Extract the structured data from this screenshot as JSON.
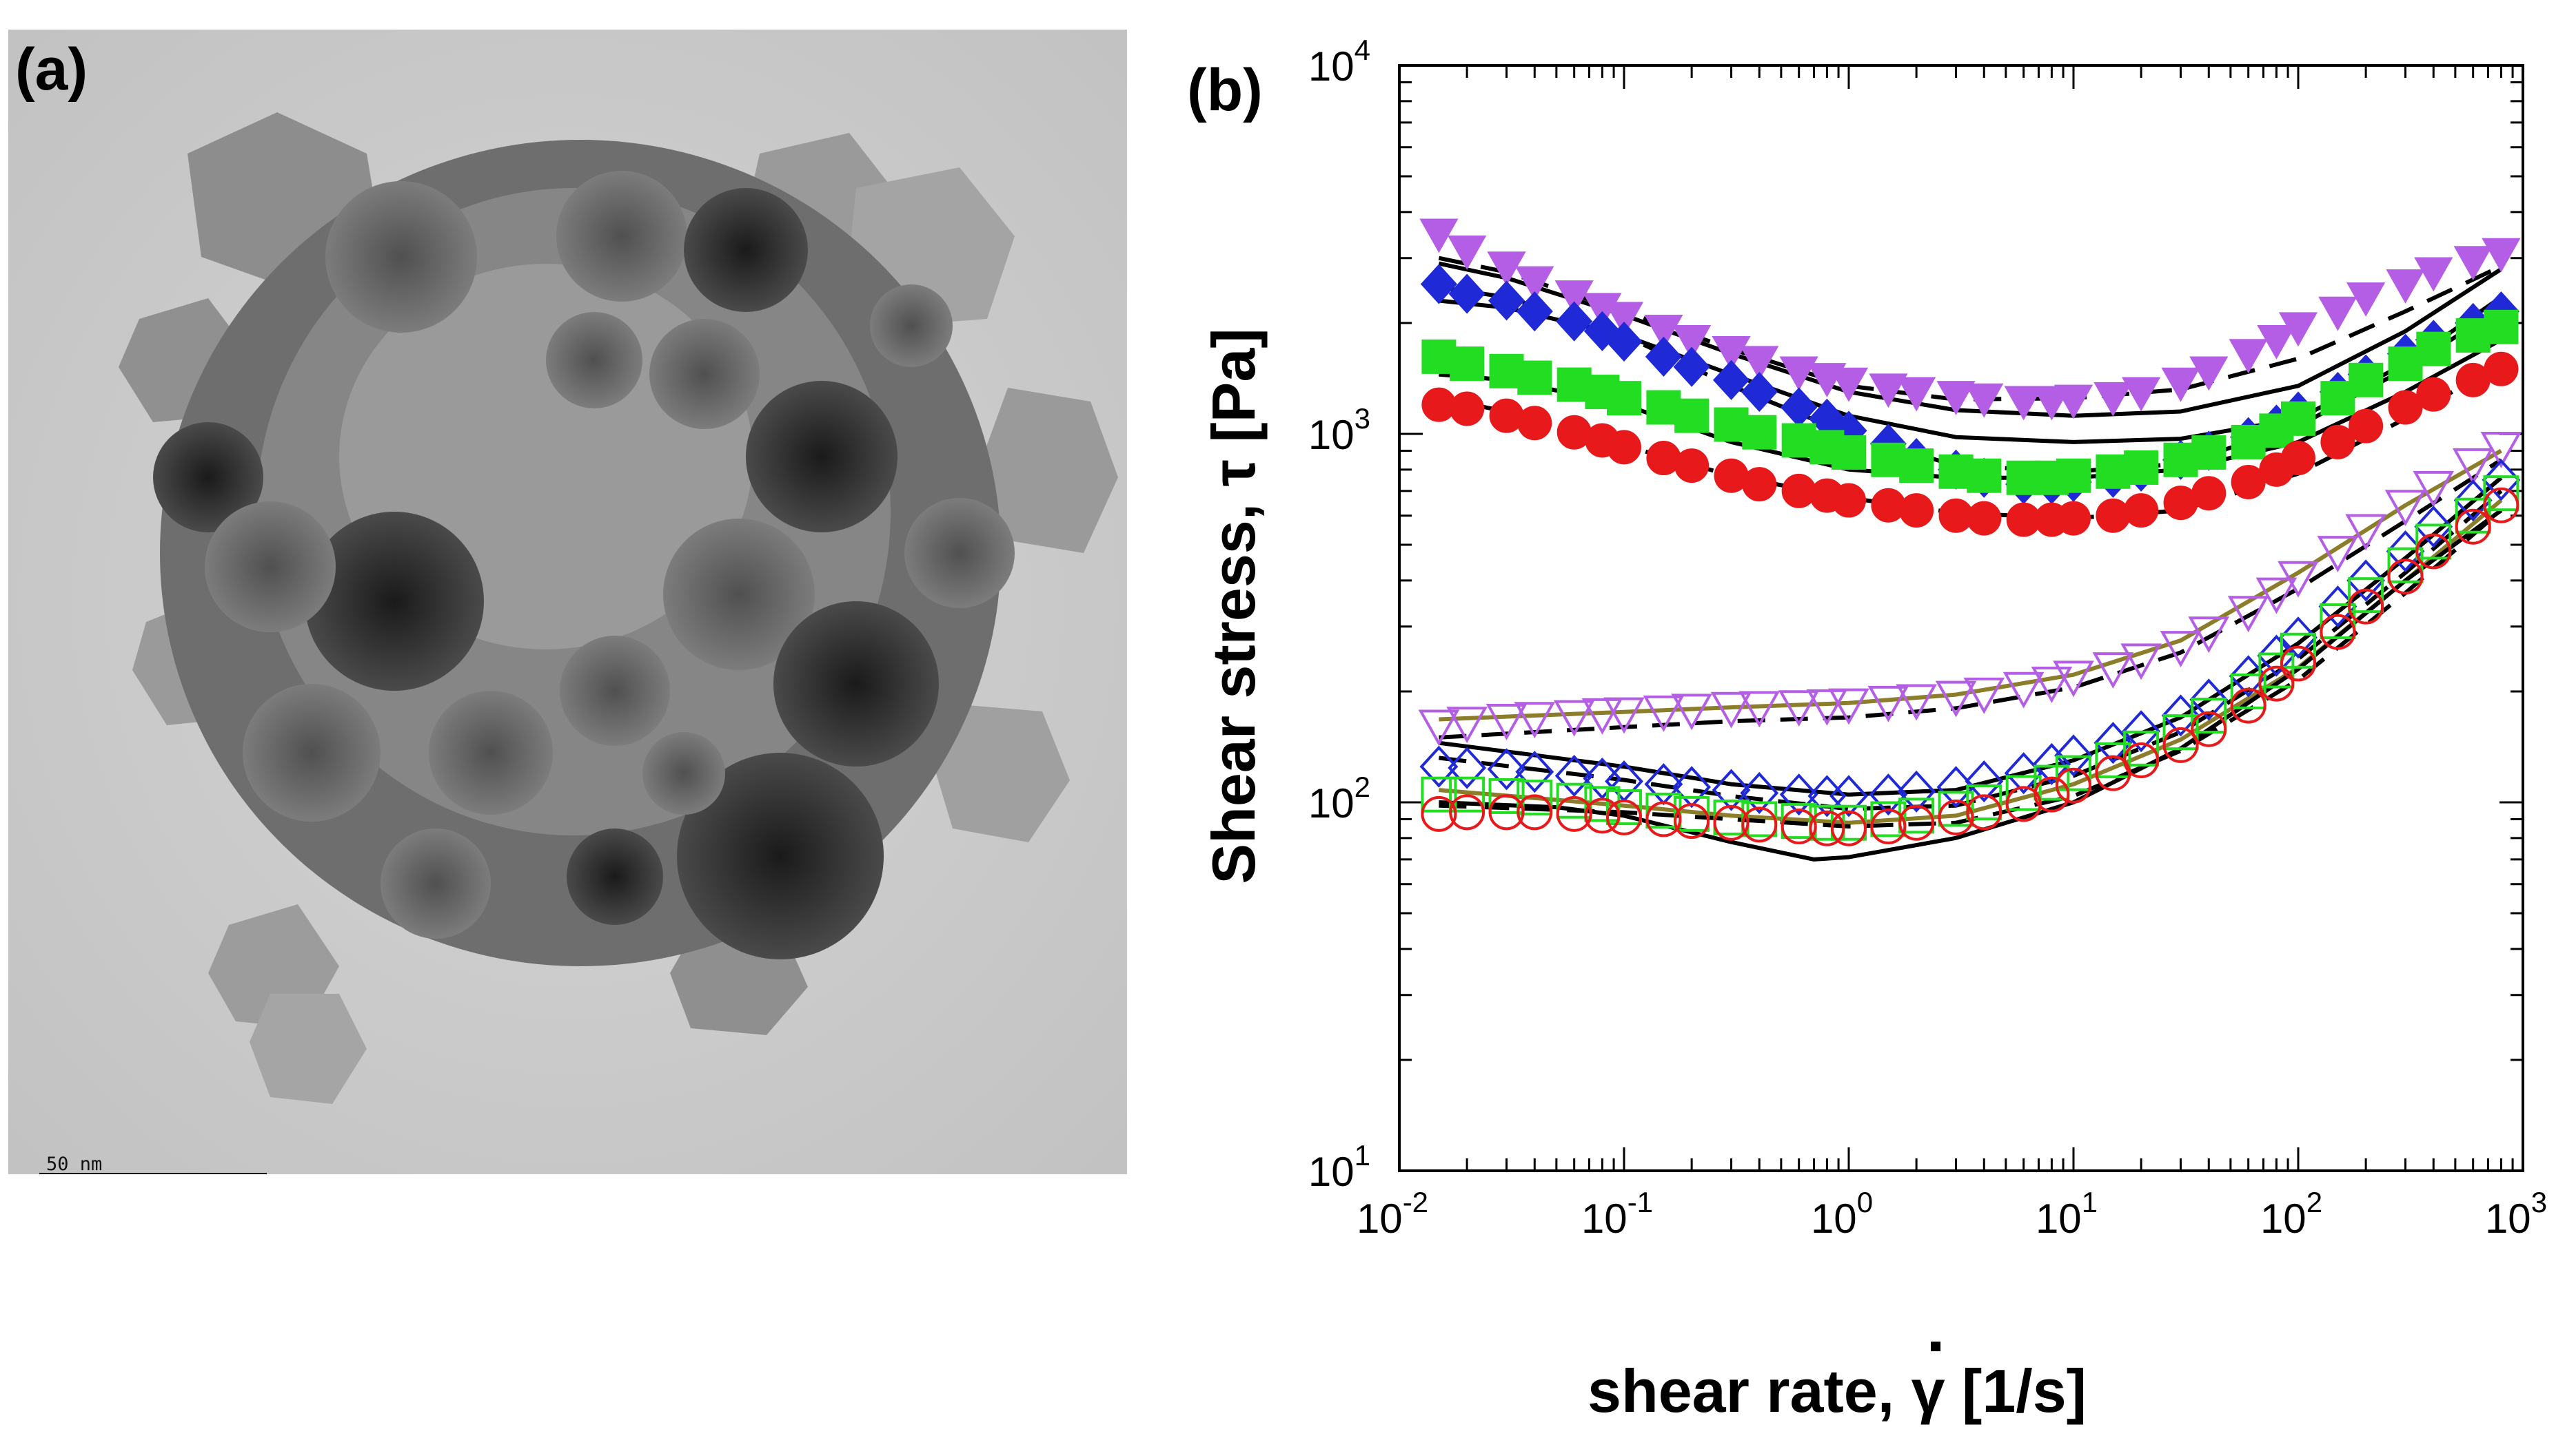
{
  "panel_a": {
    "label": "(a)",
    "scale_bar_text": "50 nm",
    "image_description": "TEM micrograph of a nanoparticle agglomerate"
  },
  "panel_b": {
    "label": "(b)"
  },
  "chart_data": {
    "type": "scatter",
    "xscale": "log",
    "yscale": "log",
    "xlim": [
      0.01,
      1000
    ],
    "ylim": [
      10,
      10000
    ],
    "xlabel": "shear rate, γ̇ [1/s]",
    "xlabel_text": "shear rate, ",
    "xlabel_symbol": "γ",
    "xlabel_unit": " [1/s]",
    "ylabel": "Shear stress, τ [Pa]",
    "xticks": [
      {
        "base": "10",
        "exp": "-2"
      },
      {
        "base": "10",
        "exp": "-1"
      },
      {
        "base": "10",
        "exp": "0"
      },
      {
        "base": "10",
        "exp": "1"
      },
      {
        "base": "10",
        "exp": "2"
      },
      {
        "base": "10",
        "exp": "3"
      }
    ],
    "yticks": [
      {
        "base": "10",
        "exp": "1"
      },
      {
        "base": "10",
        "exp": "2"
      },
      {
        "base": "10",
        "exp": "3"
      },
      {
        "base": "10",
        "exp": "4"
      }
    ],
    "series": [
      {
        "name": "filled-triangle-violet",
        "marker": "triangle-down",
        "filled": true,
        "color": "#b45ee6",
        "x": [
          0.015,
          0.02,
          0.03,
          0.04,
          0.06,
          0.08,
          0.1,
          0.15,
          0.2,
          0.3,
          0.4,
          0.6,
          0.8,
          1,
          1.5,
          2,
          3,
          4,
          6,
          8,
          10,
          15,
          20,
          30,
          40,
          60,
          80,
          100,
          150,
          200,
          300,
          400,
          600,
          800
        ],
        "y": [
          3500,
          3150,
          2850,
          2600,
          2380,
          2200,
          2080,
          1920,
          1800,
          1680,
          1580,
          1480,
          1420,
          1380,
          1330,
          1300,
          1270,
          1250,
          1230,
          1230,
          1240,
          1260,
          1300,
          1380,
          1480,
          1650,
          1800,
          1950,
          2150,
          2350,
          2550,
          2750,
          2950,
          3100
        ]
      },
      {
        "name": "filled-diamond-blue",
        "marker": "diamond",
        "filled": true,
        "color": "#1f2ad6",
        "x": [
          0.015,
          0.02,
          0.03,
          0.04,
          0.06,
          0.08,
          0.1,
          0.15,
          0.2,
          0.3,
          0.4,
          0.6,
          0.8,
          1,
          1.5,
          2,
          3,
          4,
          6,
          8,
          10,
          15,
          20,
          30,
          40,
          60,
          80,
          100,
          150,
          200,
          300,
          400,
          600,
          800
        ],
        "y": [
          2550,
          2400,
          2300,
          2150,
          2020,
          1900,
          1780,
          1620,
          1520,
          1400,
          1300,
          1180,
          1100,
          1020,
          940,
          860,
          800,
          760,
          730,
          730,
          740,
          760,
          790,
          850,
          900,
          980,
          1060,
          1150,
          1300,
          1450,
          1650,
          1800,
          2000,
          2150
        ]
      },
      {
        "name": "filled-square-green",
        "marker": "square",
        "filled": true,
        "color": "#22dd22",
        "x": [
          0.015,
          0.02,
          0.03,
          0.04,
          0.06,
          0.08,
          0.1,
          0.15,
          0.2,
          0.3,
          0.4,
          0.6,
          0.8,
          1,
          1.5,
          2,
          3,
          4,
          6,
          8,
          10,
          15,
          20,
          30,
          40,
          60,
          80,
          100,
          150,
          200,
          300,
          400,
          600,
          800
        ],
        "y": [
          1620,
          1550,
          1480,
          1420,
          1360,
          1300,
          1250,
          1180,
          1120,
          1060,
          1010,
          960,
          920,
          890,
          850,
          820,
          790,
          770,
          760,
          760,
          770,
          790,
          810,
          850,
          890,
          950,
          1020,
          1100,
          1250,
          1400,
          1550,
          1700,
          1850,
          1950
        ]
      },
      {
        "name": "filled-circle-red",
        "marker": "circle",
        "filled": true,
        "color": "#e8191b",
        "x": [
          0.015,
          0.02,
          0.03,
          0.04,
          0.06,
          0.08,
          0.1,
          0.15,
          0.2,
          0.3,
          0.4,
          0.6,
          0.8,
          1,
          1.5,
          2,
          3,
          4,
          6,
          8,
          10,
          15,
          20,
          30,
          40,
          60,
          80,
          100,
          150,
          200,
          300,
          400,
          600,
          800
        ],
        "y": [
          1200,
          1170,
          1120,
          1070,
          1010,
          960,
          920,
          860,
          820,
          770,
          730,
          700,
          680,
          660,
          640,
          620,
          600,
          590,
          585,
          585,
          590,
          600,
          620,
          650,
          690,
          740,
          800,
          860,
          950,
          1050,
          1180,
          1280,
          1400,
          1500
        ]
      },
      {
        "name": "open-triangle-violet",
        "marker": "triangle-down",
        "filled": false,
        "color": "#b45ee6",
        "x": [
          0.015,
          0.02,
          0.03,
          0.04,
          0.06,
          0.08,
          0.1,
          0.15,
          0.2,
          0.3,
          0.4,
          0.6,
          0.8,
          1,
          1.5,
          2,
          3,
          4,
          6,
          8,
          10,
          15,
          20,
          30,
          40,
          60,
          80,
          100,
          150,
          200,
          300,
          400,
          600,
          800
        ],
        "y": [
          162,
          165,
          168,
          170,
          172,
          174,
          175,
          177,
          179,
          181,
          182,
          183,
          184,
          185,
          188,
          190,
          194,
          198,
          205,
          212,
          220,
          232,
          245,
          265,
          290,
          330,
          370,
          410,
          480,
          550,
          640,
          720,
          830,
          920
        ]
      },
      {
        "name": "open-diamond-blue",
        "marker": "diamond",
        "filled": false,
        "color": "#1f2ad6",
        "x": [
          0.015,
          0.02,
          0.03,
          0.04,
          0.06,
          0.08,
          0.1,
          0.15,
          0.2,
          0.3,
          0.4,
          0.6,
          0.8,
          1,
          1.5,
          2,
          3,
          4,
          6,
          8,
          10,
          15,
          20,
          30,
          40,
          60,
          80,
          100,
          150,
          200,
          300,
          400,
          600,
          800
        ],
        "y": [
          125,
          124,
          123,
          121,
          118,
          116,
          114,
          112,
          110,
          108,
          106,
          105,
          104,
          104,
          105,
          107,
          110,
          114,
          120,
          127,
          134,
          145,
          156,
          172,
          190,
          220,
          250,
          280,
          340,
          400,
          480,
          560,
          660,
          750
        ]
      },
      {
        "name": "open-square-green",
        "marker": "square",
        "filled": false,
        "color": "#22dd22",
        "x": [
          0.015,
          0.02,
          0.03,
          0.04,
          0.06,
          0.08,
          0.1,
          0.15,
          0.2,
          0.3,
          0.4,
          0.6,
          0.8,
          1,
          1.5,
          2,
          3,
          4,
          6,
          8,
          10,
          15,
          20,
          30,
          40,
          60,
          80,
          100,
          150,
          200,
          300,
          400,
          600,
          800
        ],
        "y": [
          105,
          105,
          104,
          103,
          101,
          99,
          97,
          95,
          93,
          91,
          90,
          89,
          88,
          88,
          90,
          92,
          96,
          100,
          106,
          113,
          120,
          130,
          140,
          155,
          172,
          200,
          228,
          258,
          310,
          365,
          440,
          510,
          600,
          690
        ]
      },
      {
        "name": "open-circle-red",
        "marker": "circle",
        "filled": false,
        "color": "#e8191b",
        "x": [
          0.015,
          0.02,
          0.03,
          0.04,
          0.06,
          0.08,
          0.1,
          0.15,
          0.2,
          0.3,
          0.4,
          0.6,
          0.8,
          1,
          1.5,
          2,
          3,
          4,
          6,
          8,
          10,
          15,
          20,
          30,
          40,
          60,
          80,
          100,
          150,
          200,
          300,
          400,
          600,
          800
        ],
        "y": [
          93,
          94,
          94,
          94,
          93,
          92,
          91,
          90,
          89,
          88,
          87,
          86,
          85,
          85,
          86,
          88,
          91,
          94,
          99,
          105,
          111,
          120,
          130,
          143,
          158,
          183,
          210,
          238,
          290,
          340,
          410,
          480,
          560,
          640
        ]
      }
    ],
    "fit_curves": [
      {
        "name": "fit-solid-1",
        "style": "solid",
        "color": "#000000",
        "x": [
          0.015,
          0.03,
          0.1,
          0.3,
          1,
          3,
          10,
          30,
          100,
          300,
          800
        ],
        "y": [
          2900,
          2650,
          2100,
          1650,
          1300,
          1160,
          1120,
          1150,
          1350,
          1900,
          2800
        ]
      },
      {
        "name": "fit-dash-1",
        "style": "dashed",
        "color": "#000000",
        "x": [
          0.015,
          0.03,
          0.1,
          0.3,
          1,
          3,
          10,
          30,
          100,
          300,
          800
        ],
        "y": [
          3000,
          2750,
          2150,
          1700,
          1350,
          1240,
          1250,
          1320,
          1600,
          2150,
          2850
        ]
      },
      {
        "name": "fit-solid-2",
        "style": "solid",
        "color": "#000000",
        "x": [
          0.015,
          0.03,
          0.1,
          0.3,
          1,
          3,
          10,
          30,
          100,
          300,
          800
        ],
        "y": [
          2300,
          2200,
          1850,
          1450,
          1120,
          980,
          950,
          970,
          1100,
          1550,
          2350
        ]
      },
      {
        "name": "fit-dash-2",
        "style": "dashed",
        "color": "#000000",
        "x": [
          0.015,
          0.03,
          0.1,
          0.3,
          1,
          3,
          10,
          30,
          100,
          300,
          800
        ],
        "y": [
          2500,
          2350,
          1850,
          1350,
          1000,
          820,
          790,
          830,
          1050,
          1500,
          2200
        ]
      },
      {
        "name": "fit-solid-3",
        "style": "solid",
        "color": "#000000",
        "x": [
          0.015,
          0.03,
          0.1,
          0.3,
          1,
          3,
          10,
          30,
          100,
          300,
          800
        ],
        "y": [
          1450,
          1400,
          1200,
          950,
          800,
          760,
          760,
          800,
          950,
          1300,
          1800
        ]
      },
      {
        "name": "fit-dash-3",
        "style": "dashed",
        "color": "#000000",
        "x": [
          0.015,
          0.03,
          0.1,
          0.3,
          1,
          3,
          10,
          30,
          100,
          300,
          800
        ],
        "y": [
          1250,
          1150,
          930,
          770,
          670,
          610,
          590,
          620,
          780,
          1100,
          1550
        ]
      },
      {
        "name": "fit-olive-1",
        "style": "solid",
        "color": "#8b7d2a",
        "x": [
          0.015,
          0.1,
          0.3,
          1,
          3,
          10,
          30,
          100,
          300,
          800
        ],
        "y": [
          168,
          176,
          181,
          186,
          196,
          222,
          275,
          420,
          640,
          900
        ]
      },
      {
        "name": "fit-dash-4",
        "style": "dashed",
        "color": "#000000",
        "x": [
          0.015,
          0.1,
          0.3,
          1,
          3,
          10,
          30,
          100,
          300,
          800
        ],
        "y": [
          150,
          160,
          166,
          170,
          180,
          205,
          255,
          380,
          580,
          850
        ]
      },
      {
        "name": "fit-solid-4",
        "style": "solid",
        "color": "#000000",
        "x": [
          0.015,
          0.1,
          0.3,
          1,
          3,
          10,
          30,
          100,
          300,
          800
        ],
        "y": [
          145,
          125,
          112,
          105,
          108,
          130,
          170,
          270,
          460,
          760
        ]
      },
      {
        "name": "fit-dash-5",
        "style": "dashed",
        "color": "#000000",
        "x": [
          0.015,
          0.1,
          0.3,
          1,
          3,
          10,
          30,
          100,
          300,
          800
        ],
        "y": [
          132,
          115,
          104,
          96,
          98,
          118,
          155,
          245,
          420,
          700
        ]
      },
      {
        "name": "fit-olive-2",
        "style": "solid",
        "color": "#8b7d2a",
        "x": [
          0.015,
          0.1,
          0.3,
          1,
          3,
          10,
          30,
          100,
          300,
          800
        ],
        "y": [
          108,
          98,
          92,
          88,
          92,
          112,
          148,
          232,
          400,
          660
        ]
      },
      {
        "name": "fit-dash-6",
        "style": "dashed",
        "color": "#000000",
        "x": [
          0.015,
          0.1,
          0.3,
          1,
          3,
          10,
          30,
          100,
          300,
          800
        ],
        "y": [
          98,
          94,
          90,
          86,
          88,
          104,
          138,
          215,
          370,
          620
        ]
      },
      {
        "name": "fit-solid-5",
        "style": "solid",
        "color": "#000000",
        "x": [
          0.015,
          0.05,
          0.1,
          0.3,
          0.7,
          1,
          3,
          10,
          30,
          100,
          300,
          800
        ],
        "y": [
          100,
          97,
          92,
          78,
          70,
          71,
          80,
          100,
          140,
          230,
          400,
          620
        ]
      }
    ]
  }
}
